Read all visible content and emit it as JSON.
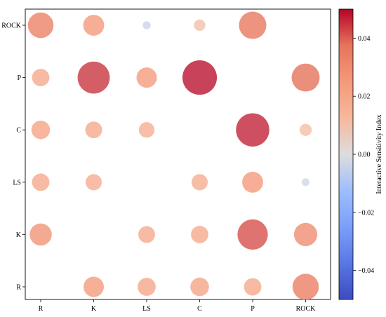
{
  "chart_data": {
    "type": "scatter",
    "x_categories": [
      "R",
      "K",
      "LS",
      "C",
      "P",
      "ROCK"
    ],
    "y_categories": [
      "R",
      "K",
      "LS",
      "C",
      "P",
      "ROCK"
    ],
    "points": [
      {
        "x": "R",
        "y": "ROCK",
        "value": 0.034
      },
      {
        "x": "K",
        "y": "ROCK",
        "value": 0.026
      },
      {
        "x": "LS",
        "y": "ROCK",
        "value": -0.004
      },
      {
        "x": "C",
        "y": "ROCK",
        "value": 0.01
      },
      {
        "x": "P",
        "y": "ROCK",
        "value": 0.037
      },
      {
        "x": "R",
        "y": "P",
        "value": 0.02
      },
      {
        "x": "K",
        "y": "P",
        "value": 0.045
      },
      {
        "x": "LS",
        "y": "P",
        "value": 0.025
      },
      {
        "x": "C",
        "y": "P",
        "value": 0.049
      },
      {
        "x": "ROCK",
        "y": "P",
        "value": 0.038
      },
      {
        "x": "R",
        "y": "C",
        "value": 0.022
      },
      {
        "x": "K",
        "y": "C",
        "value": 0.019
      },
      {
        "x": "LS",
        "y": "C",
        "value": 0.017
      },
      {
        "x": "P",
        "y": "C",
        "value": 0.047
      },
      {
        "x": "ROCK",
        "y": "C",
        "value": 0.011
      },
      {
        "x": "R",
        "y": "LS",
        "value": 0.02
      },
      {
        "x": "K",
        "y": "LS",
        "value": 0.018
      },
      {
        "x": "C",
        "y": "LS",
        "value": 0.018
      },
      {
        "x": "P",
        "y": "LS",
        "value": 0.026
      },
      {
        "x": "ROCK",
        "y": "LS",
        "value": -0.003
      },
      {
        "x": "R",
        "y": "K",
        "value": 0.028
      },
      {
        "x": "LS",
        "y": "K",
        "value": 0.019
      },
      {
        "x": "C",
        "y": "K",
        "value": 0.02
      },
      {
        "x": "P",
        "y": "K",
        "value": 0.042
      },
      {
        "x": "ROCK",
        "y": "K",
        "value": 0.03
      },
      {
        "x": "K",
        "y": "R",
        "value": 0.025
      },
      {
        "x": "LS",
        "y": "R",
        "value": 0.021
      },
      {
        "x": "C",
        "y": "R",
        "value": 0.022
      },
      {
        "x": "P",
        "y": "R",
        "value": 0.02
      },
      {
        "x": "ROCK",
        "y": "R",
        "value": 0.035
      }
    ],
    "colorbar": {
      "label": "Interactive Sensitivity Index",
      "range": [
        -0.05,
        0.05
      ],
      "ticks": [
        0.04,
        0.02,
        0.0,
        -0.02,
        -0.04
      ],
      "tick_labels": [
        "0.04",
        "0.02",
        "0.00",
        "−0.02",
        "−0.04"
      ],
      "colormap": "coolwarm",
      "low_color": "#3b4cc0",
      "mid_color": "#dddddd",
      "high_color": "#b40426"
    },
    "grid": false
  }
}
